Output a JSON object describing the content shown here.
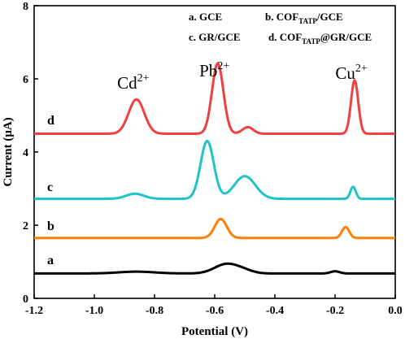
{
  "chart_data": {
    "type": "line",
    "xlabel": "Potential (V)",
    "ylabel": "Current (μA)",
    "xlim": [
      -1.2,
      0.0
    ],
    "ylim": [
      0,
      8
    ],
    "xticks": [
      -1.2,
      -1.0,
      -0.8,
      -0.6,
      -0.4,
      -0.2,
      0.0
    ],
    "xtick_labels": [
      "-1.2",
      "-1.0",
      "-0.8",
      "-0.6",
      "-0.4",
      "-0.2",
      "0.0"
    ],
    "yticks": [
      0,
      2,
      4,
      6,
      8
    ],
    "ytick_labels": [
      "0",
      "2",
      "4",
      "6",
      "8"
    ],
    "grid": false,
    "legend": {
      "placement": "top-right",
      "entries": [
        {
          "main": "a. GCE",
          "sub": ""
        },
        {
          "main": "b. COF",
          "sub": "TATP",
          "rest": "/GCE"
        },
        {
          "main": "c. GR/GCE",
          "sub": ""
        },
        {
          "main": "d.  COF",
          "sub": "TATP",
          "rest": "@GR/GCE"
        }
      ]
    },
    "peak_labels": [
      {
        "ion": "Cd",
        "charge": "2+",
        "x": -0.86
      },
      {
        "ion": "Pb",
        "charge": "2+",
        "x": -0.59
      },
      {
        "ion": "Cu",
        "charge": "2+",
        "x": -0.135
      }
    ],
    "series": [
      {
        "name": "a",
        "color": "#000000",
        "baseline": 0.68,
        "peaks": [
          {
            "x": -0.86,
            "h": 0.05,
            "w": 0.06
          },
          {
            "x": -0.56,
            "h": 0.26,
            "w": 0.04
          },
          {
            "x": -0.5,
            "h": 0.06,
            "w": 0.03
          },
          {
            "x": -0.2,
            "h": 0.06,
            "w": 0.015
          }
        ]
      },
      {
        "name": "b",
        "color": "#ff8000",
        "baseline": 1.65,
        "peaks": [
          {
            "x": -0.58,
            "h": 0.52,
            "w": 0.02
          },
          {
            "x": -0.165,
            "h": 0.3,
            "w": 0.012
          }
        ]
      },
      {
        "name": "c",
        "color": "#1fc3c8",
        "baseline": 2.72,
        "peaks": [
          {
            "x": -0.865,
            "h": 0.14,
            "w": 0.03
          },
          {
            "x": -0.625,
            "h": 1.58,
            "w": 0.022
          },
          {
            "x": -0.5,
            "h": 0.62,
            "w": 0.035
          },
          {
            "x": -0.14,
            "h": 0.33,
            "w": 0.009
          }
        ]
      },
      {
        "name": "d",
        "color": "#f04040",
        "baseline": 4.5,
        "peaks": [
          {
            "x": -0.86,
            "h": 0.94,
            "w": 0.026
          },
          {
            "x": -0.59,
            "h": 1.92,
            "w": 0.019
          },
          {
            "x": -0.49,
            "h": 0.18,
            "w": 0.018
          },
          {
            "x": -0.135,
            "h": 1.46,
            "w": 0.012
          }
        ]
      }
    ]
  }
}
